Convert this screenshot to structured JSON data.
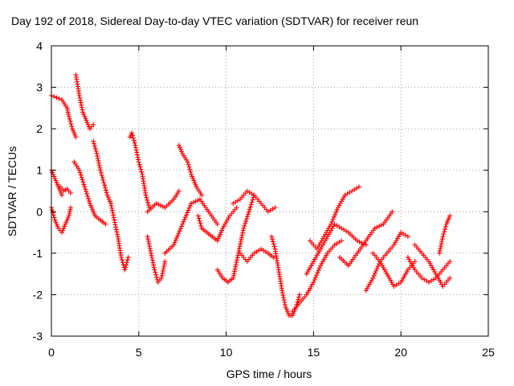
{
  "chart_data": {
    "type": "scatter",
    "title": "Day 192 of 2018, Sidereal Day-to-day VTEC variation (SDTVAR) for receiver reun",
    "xlabel": "GPS time / hours",
    "ylabel": "SDTVAR / TECUs",
    "xlim": [
      0,
      25
    ],
    "ylim": [
      -3,
      4
    ],
    "xticks": [
      0,
      5,
      10,
      15,
      20,
      25
    ],
    "yticks": [
      -3,
      -2,
      -1,
      0,
      1,
      2,
      3,
      4
    ],
    "grid": true,
    "marker": "+",
    "series": [
      {
        "name": "SDTVAR",
        "color": "#ff0000",
        "tracks": [
          {
            "x": [
              0.0,
              0.3,
              0.6,
              0.9,
              1.0,
              1.2,
              1.4
            ],
            "y": [
              2.8,
              2.75,
              2.7,
              2.5,
              2.3,
              2.0,
              1.8
            ]
          },
          {
            "x": [
              0.0,
              0.2,
              0.4,
              0.6
            ],
            "y": [
              1.0,
              0.8,
              0.6,
              0.4
            ]
          },
          {
            "x": [
              0.0,
              0.2,
              0.4,
              0.6,
              0.8,
              1.0,
              1.1
            ],
            "y": [
              0.1,
              -0.2,
              -0.4,
              -0.5,
              -0.3,
              -0.1,
              0.1
            ]
          },
          {
            "x": [
              0.5,
              0.7,
              0.9,
              1.1
            ],
            "y": [
              0.6,
              0.5,
              0.55,
              0.45
            ]
          },
          {
            "x": [
              1.4,
              1.6,
              1.8,
              2.0,
              2.2,
              2.4
            ],
            "y": [
              3.3,
              2.8,
              2.4,
              2.2,
              2.0,
              2.1
            ]
          },
          {
            "x": [
              1.3,
              1.6,
              1.9,
              2.2,
              2.5,
              2.8,
              3.1
            ],
            "y": [
              1.2,
              1.0,
              0.6,
              0.2,
              -0.1,
              -0.2,
              -0.3
            ]
          },
          {
            "x": [
              2.4,
              2.6,
              2.8,
              3.0,
              3.2,
              3.4
            ],
            "y": [
              1.7,
              1.4,
              1.0,
              0.7,
              0.4,
              0.2
            ]
          },
          {
            "x": [
              3.4,
              3.6,
              3.8,
              4.0,
              4.2,
              4.4
            ],
            "y": [
              0.2,
              -0.2,
              -0.6,
              -1.1,
              -1.4,
              -1.1
            ]
          },
          {
            "x": [
              4.5,
              4.6,
              4.8,
              5.0,
              5.2,
              5.4,
              5.6
            ],
            "y": [
              1.8,
              1.9,
              1.6,
              1.2,
              0.9,
              0.4,
              0.1
            ]
          },
          {
            "x": [
              5.5,
              5.7,
              5.9,
              6.1,
              6.3,
              6.5
            ],
            "y": [
              -0.6,
              -1.0,
              -1.4,
              -1.7,
              -1.6,
              -1.2
            ]
          },
          {
            "x": [
              5.5,
              6.0,
              6.5,
              7.0,
              7.3
            ],
            "y": [
              0.0,
              0.2,
              0.1,
              0.3,
              0.5
            ]
          },
          {
            "x": [
              6.5,
              7.0,
              7.5,
              8.0,
              8.5,
              9.0,
              9.5
            ],
            "y": [
              -1.0,
              -0.8,
              -0.3,
              0.2,
              0.3,
              0.0,
              -0.3
            ]
          },
          {
            "x": [
              7.3,
              7.5,
              7.8,
              8.0,
              8.3,
              8.6
            ],
            "y": [
              1.6,
              1.4,
              1.2,
              0.9,
              0.6,
              0.4
            ]
          },
          {
            "x": [
              8.4,
              8.6,
              8.9,
              9.2,
              9.5,
              9.8,
              10.2,
              10.6
            ],
            "y": [
              -0.1,
              -0.4,
              -0.5,
              -0.6,
              -0.7,
              -0.4,
              -0.1,
              0.1
            ]
          },
          {
            "x": [
              9.5,
              9.8,
              10.1,
              10.4,
              10.7,
              11.0,
              11.3,
              11.6
            ],
            "y": [
              -1.4,
              -1.6,
              -1.7,
              -1.6,
              -1.0,
              -0.4,
              0.0,
              0.4
            ]
          },
          {
            "x": [
              10.4,
              10.8,
              11.2,
              11.6,
              12.0,
              12.4,
              12.8
            ],
            "y": [
              0.2,
              0.3,
              0.5,
              0.4,
              0.2,
              0.0,
              0.1
            ]
          },
          {
            "x": [
              10.8,
              11.2,
              11.6,
              12.0,
              12.4,
              12.7
            ],
            "y": [
              -1.0,
              -1.2,
              -1.0,
              -0.9,
              -1.0,
              -1.1
            ]
          },
          {
            "x": [
              12.6,
              12.8,
              13.0,
              13.2,
              13.4,
              13.6,
              13.8,
              14.0,
              14.2
            ],
            "y": [
              -0.6,
              -0.9,
              -1.4,
              -1.9,
              -2.3,
              -2.5,
              -2.5,
              -2.3,
              -2.0
            ]
          },
          {
            "x": [
              13.8,
              14.2,
              14.6,
              15.0,
              15.4,
              15.8,
              16.2,
              16.6
            ],
            "y": [
              -2.4,
              -2.2,
              -2.0,
              -1.7,
              -1.3,
              -1.0,
              -0.8,
              -0.7
            ]
          },
          {
            "x": [
              14.6,
              15.0,
              15.4,
              15.8,
              16.2,
              16.6,
              17.0,
              17.5,
              18.0
            ],
            "y": [
              -1.5,
              -1.2,
              -0.9,
              -0.6,
              -0.3,
              -0.4,
              -0.5,
              -0.7,
              -0.8
            ]
          },
          {
            "x": [
              14.8,
              15.2,
              15.6,
              16.0,
              16.4,
              16.8,
              17.2,
              17.6
            ],
            "y": [
              -0.7,
              -0.9,
              -0.6,
              -0.3,
              0.1,
              0.4,
              0.5,
              0.6
            ]
          },
          {
            "x": [
              16.5,
              17.0,
              17.5,
              18.0,
              18.5,
              19.0,
              19.5
            ],
            "y": [
              -1.1,
              -1.3,
              -1.0,
              -0.7,
              -0.4,
              -0.3,
              0.0
            ]
          },
          {
            "x": [
              18.0,
              18.4,
              18.8,
              19.2,
              19.6,
              20.0,
              20.4
            ],
            "y": [
              -1.9,
              -1.6,
              -1.2,
              -1.0,
              -0.8,
              -0.5,
              -0.6
            ]
          },
          {
            "x": [
              18.4,
              18.8,
              19.2,
              19.6,
              20.0,
              20.4,
              20.8
            ],
            "y": [
              -1.0,
              -1.2,
              -1.5,
              -1.8,
              -1.7,
              -1.4,
              -1.2
            ]
          },
          {
            "x": [
              20.4,
              20.8,
              21.2,
              21.6,
              22.0,
              22.4,
              22.8
            ],
            "y": [
              -1.1,
              -1.4,
              -1.6,
              -1.7,
              -1.6,
              -1.4,
              -1.2
            ]
          },
          {
            "x": [
              20.8,
              21.2,
              21.6,
              22.0,
              22.4,
              22.8
            ],
            "y": [
              -0.8,
              -1.0,
              -1.2,
              -1.5,
              -1.8,
              -1.6
            ]
          },
          {
            "x": [
              22.2,
              22.4,
              22.6,
              22.8
            ],
            "y": [
              -1.0,
              -0.6,
              -0.3,
              -0.1
            ]
          }
        ]
      }
    ]
  }
}
